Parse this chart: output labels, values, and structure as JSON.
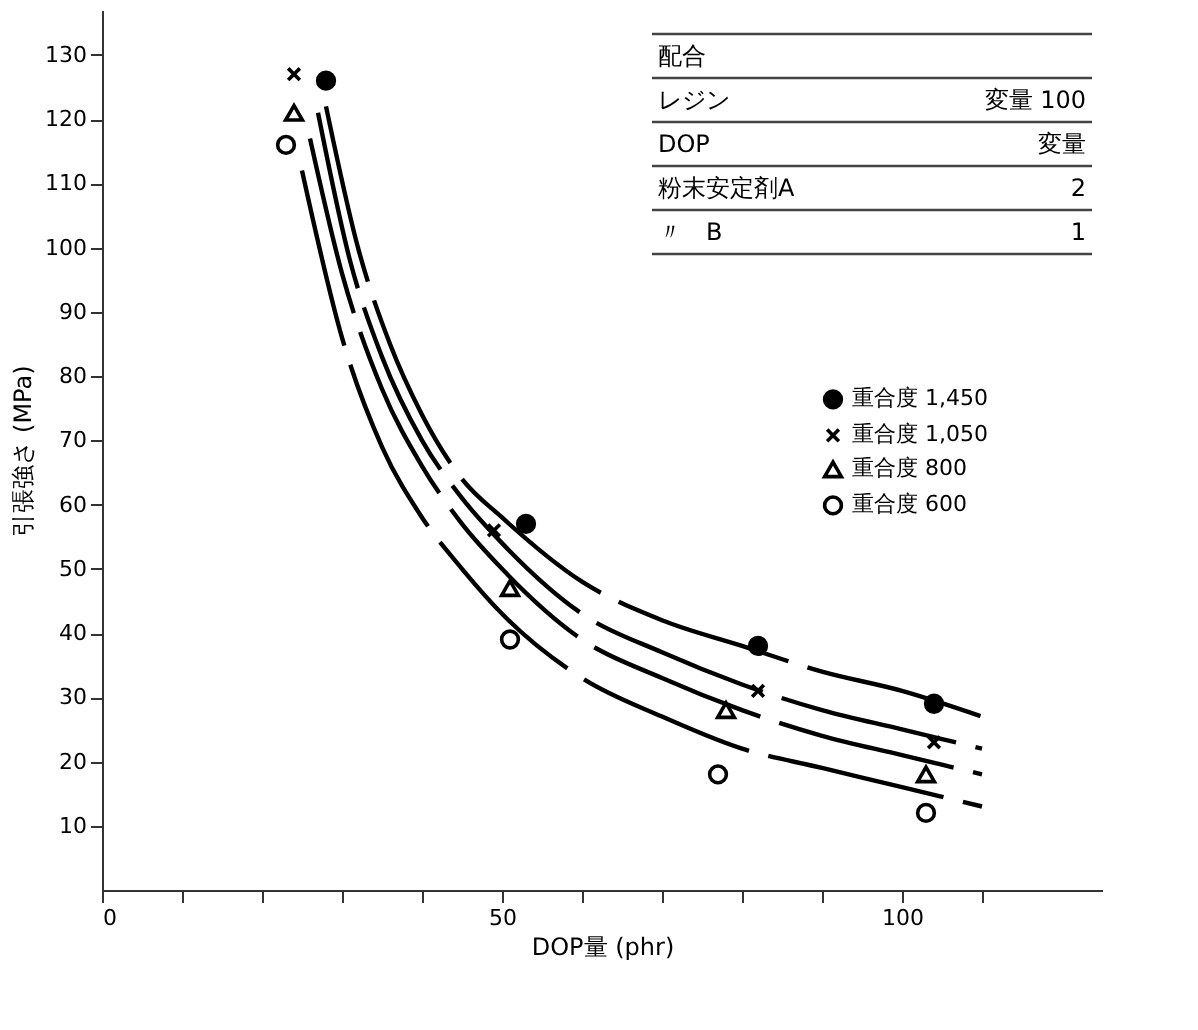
{
  "chart_data": {
    "type": "scatter",
    "xlabel": "DOP量 (phr)",
    "ylabel": "引張強さ (MPa)",
    "xlim": [
      0,
      125
    ],
    "ylim": [
      0,
      137
    ],
    "xticks": [
      0,
      {
        "value": 10,
        "label": null
      },
      {
        "value": 20,
        "label": null
      },
      {
        "value": 30,
        "label": null
      },
      {
        "value": 40,
        "label": null
      },
      50,
      {
        "value": 60,
        "label": null
      },
      {
        "value": 70,
        "label": null
      },
      {
        "value": 80,
        "label": null
      },
      {
        "value": 90,
        "label": null
      },
      100,
      {
        "value": 110,
        "label": null
      }
    ],
    "yticks": [
      10,
      20,
      30,
      40,
      50,
      60,
      70,
      80,
      90,
      100,
      110,
      120,
      130
    ],
    "grid": false,
    "legend": "right",
    "annotations": [
      "配合",
      "レジン",
      "変量 100",
      "DOP",
      "変量",
      "粉末安定剤A",
      "2",
      "〃　B",
      "1"
    ],
    "series": [
      {
        "name": "重合度 1,450",
        "marker": "circle",
        "color": "#000000",
        "x": [
          28,
          53,
          82,
          104
        ],
        "values": [
          126,
          57,
          38,
          29
        ]
      },
      {
        "name": "重合度 1,050",
        "marker": "cross",
        "color": "#000000",
        "x": [
          24,
          49,
          82,
          104
        ],
        "values": [
          127,
          56,
          31,
          23
        ]
      },
      {
        "name": "重合度 800",
        "marker": "triangle",
        "color": "#ffffff",
        "x": [
          24,
          51,
          78,
          103
        ],
        "values": [
          121,
          47,
          28,
          18
        ]
      },
      {
        "name": "重合度 600",
        "marker": "circle",
        "color": "#ffffff",
        "x": [
          23,
          51,
          77,
          103
        ],
        "values": [
          116,
          39,
          18,
          12
        ]
      },
      {
        "type": "line",
        "marker": "none",
        "line_style": "dashed",
        "color": "#000000",
        "x": [
          28,
          32,
          36,
          40,
          45,
          50,
          60,
          70,
          80,
          90,
          100,
          110
        ],
        "values": [
          122,
          100,
          85,
          74,
          64,
          58,
          48,
          42,
          38,
          34,
          31,
          27
        ]
      },
      {
        "type": "line",
        "marker": "none",
        "line_style": "dashed",
        "color": "#000000",
        "x": [
          27,
          31,
          35,
          40,
          45,
          50,
          60,
          70,
          80,
          90,
          100,
          110
        ],
        "values": [
          121,
          98,
          83,
          70,
          61,
          54,
          43,
          37,
          32,
          28,
          25,
          22
        ]
      },
      {
        "type": "line",
        "marker": "none",
        "line_style": "dashed",
        "color": "#000000",
        "x": [
          26,
          30,
          35,
          40,
          45,
          50,
          60,
          70,
          80,
          90,
          100,
          110
        ],
        "values": [
          117,
          96,
          78,
          66,
          57,
          50,
          39,
          33,
          28,
          24,
          21,
          18
        ]
      },
      {
        "type": "line",
        "marker": "none",
        "line_style": "dashed",
        "color": "#000000",
        "x": [
          25,
          30,
          35,
          40,
          45,
          50,
          60,
          70,
          80,
          90,
          100,
          110
        ],
        "values": [
          112,
          86,
          69,
          58,
          50,
          43,
          33,
          27,
          22,
          19,
          16,
          13
        ]
      }
    ]
  }
}
